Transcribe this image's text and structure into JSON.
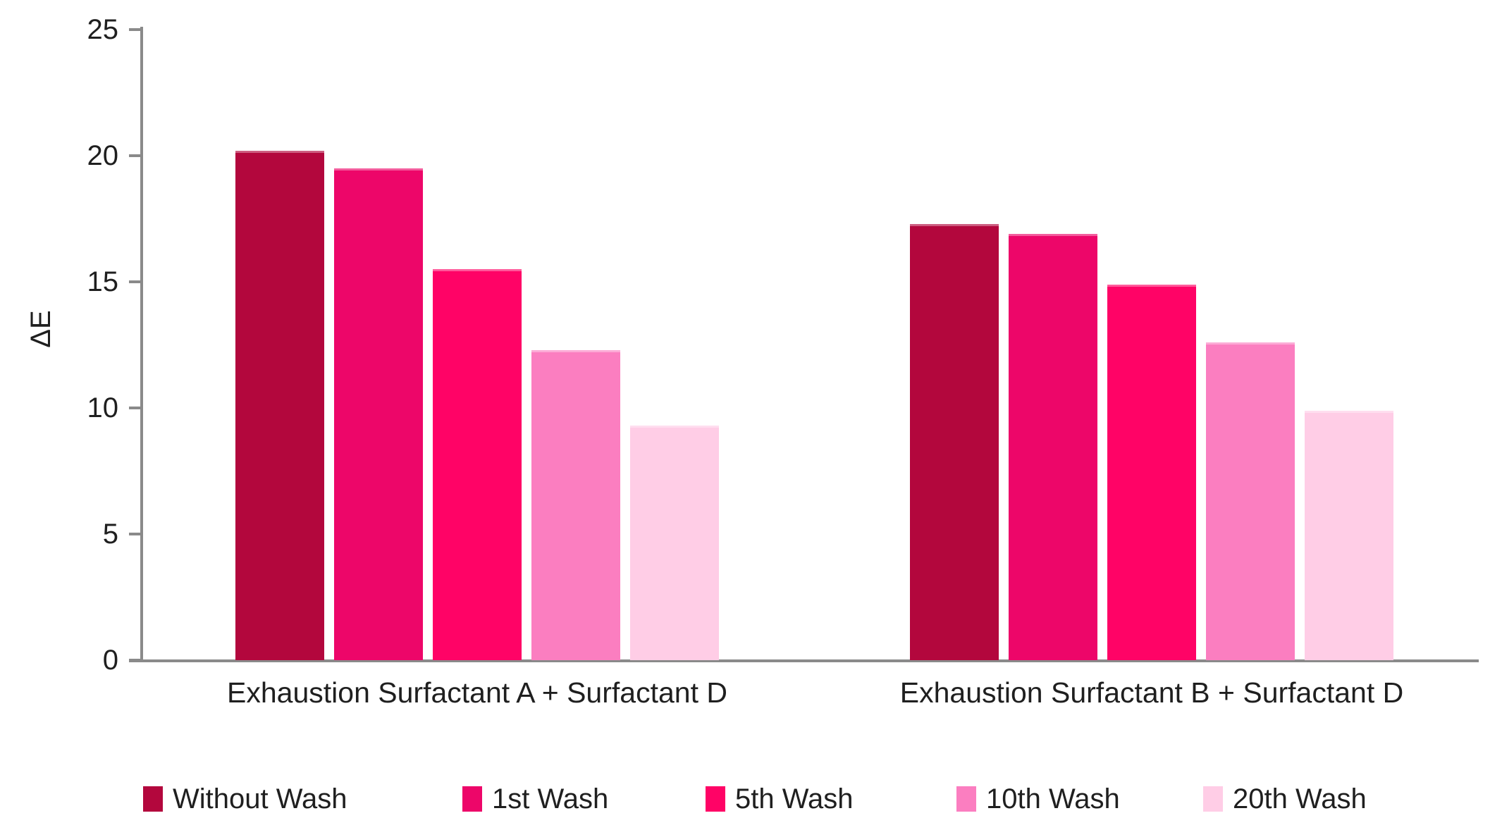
{
  "chart_data": {
    "type": "bar",
    "title": "",
    "ylabel": "ΔE",
    "xlabel": "",
    "ylim": [
      0,
      25
    ],
    "yticks": [
      0,
      5,
      10,
      15,
      20,
      25
    ],
    "grid": false,
    "legend_position": "bottom",
    "axis_color": "#8A8A8A",
    "text_color": "#1F1F1F",
    "categories": [
      "Exhaustion Surfactant A + Surfactant D",
      "Exhaustion Surfactant B + Surfactant D"
    ],
    "series": [
      {
        "name": "Without Wash",
        "color": "#B3073D",
        "values": [
          20.2,
          17.3
        ]
      },
      {
        "name": "1st Wash",
        "color": "#ED0669",
        "values": [
          19.5,
          16.9
        ]
      },
      {
        "name": "5th Wash",
        "color": "#FF0366",
        "values": [
          15.5,
          14.9
        ]
      },
      {
        "name": "10th Wash",
        "color": "#FB7EC0",
        "values": [
          12.3,
          12.6
        ]
      },
      {
        "name": "20th Wash",
        "color": "#FFCDE6",
        "values": [
          9.3,
          9.9
        ]
      }
    ]
  }
}
